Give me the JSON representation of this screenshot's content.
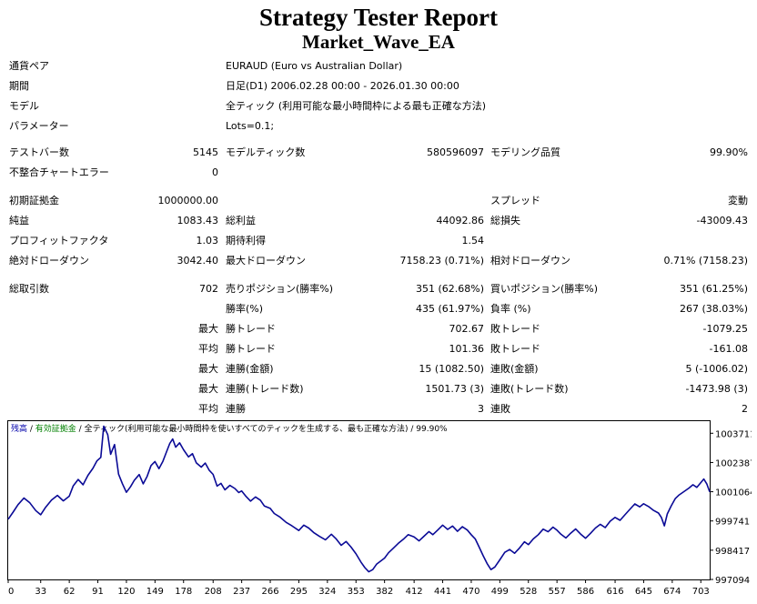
{
  "header": {
    "title": "Strategy Tester Report",
    "subtitle": "Market_Wave_EA"
  },
  "info": {
    "symbol_label": "通貨ペア",
    "symbol_value": "EURAUD (Euro vs Australian Dollar)",
    "period_label": "期間",
    "period_value": "日足(D1) 2006.02.28 00:00 - 2026.01.30 00:00",
    "model_label": "モデル",
    "model_value": "全ティック (利用可能な最小時間枠による最も正確な方法)",
    "params_label": "パラメーター",
    "params_value": "Lots=0.1;"
  },
  "stats": {
    "bars_label": "テストバー数",
    "bars_value": "5145",
    "ticks_label": "モデルティック数",
    "ticks_value": "580596097",
    "quality_label": "モデリング品質",
    "quality_value": "99.90%",
    "mismatch_label": "不整合チャートエラー",
    "mismatch_value": "0",
    "deposit_label": "初期証拠金",
    "deposit_value": "1000000.00",
    "spread_label": "スプレッド",
    "spread_value": "変動",
    "net_label": "純益",
    "net_value": "1083.43",
    "gross_profit_label": "総利益",
    "gross_profit_value": "44092.86",
    "gross_loss_label": "総損失",
    "gross_loss_value": "-43009.43",
    "pf_label": "プロフィットファクタ",
    "pf_value": "1.03",
    "expected_label": "期待利得",
    "expected_value": "1.54",
    "abs_dd_label": "絶対ドローダウン",
    "abs_dd_value": "3042.40",
    "max_dd_label": "最大ドローダウン",
    "max_dd_value": "7158.23 (0.71%)",
    "rel_dd_label": "相対ドローダウン",
    "rel_dd_value": "0.71% (7158.23)",
    "trades_label": "総取引数",
    "trades_value": "702",
    "short_label": "売りポジション(勝率%)",
    "short_value": "351 (62.68%)",
    "long_label": "買いポジション(勝率%)",
    "long_value": "351 (61.25%)",
    "win_label": "勝率(%)",
    "win_value": "435 (61.97%)",
    "loss_label": "負率 (%)",
    "loss_value": "267 (38.03%)",
    "max_word": "最大",
    "avg_word": "平均",
    "max_win_label": "勝トレード",
    "max_win_value": "702.67",
    "max_loss_label": "敗トレード",
    "max_loss_value": "-1079.25",
    "avg_win_label": "勝トレード",
    "avg_win_value": "101.36",
    "avg_loss_label": "敗トレード",
    "avg_loss_value": "-161.08",
    "cons_win_money_label": "連勝(金額)",
    "cons_win_money_value": "15 (1082.50)",
    "cons_loss_money_label": "連敗(金額)",
    "cons_loss_money_value": "5 (-1006.02)",
    "cons_win_count_label": "連勝(トレード数)",
    "cons_win_count_value": "1501.73 (3)",
    "cons_loss_count_label": "連敗(トレード数)",
    "cons_loss_count_value": "-1473.98 (3)",
    "avg_cons_win_label": "連勝",
    "avg_cons_win_value": "3",
    "avg_cons_loss_label": "連敗",
    "avg_cons_loss_value": "2"
  },
  "chart_data": {
    "type": "line",
    "legend": {
      "balance": "残高",
      "sep1": " / ",
      "equity": "有効証拠金",
      "sep2": " / ",
      "model": "全ティック(利用可能な最小時間枠を使いすべてのティックを生成する、最も正確な方法)",
      "sep3": " / ",
      "quality": "99.90%"
    },
    "x_ticks": [
      "0",
      "33",
      "62",
      "91",
      "120",
      "149",
      "178",
      "208",
      "237",
      "266",
      "295",
      "324",
      "353",
      "382",
      "412",
      "441",
      "470",
      "499",
      "528",
      "557",
      "586",
      "616",
      "645",
      "674",
      "703"
    ],
    "x_tick_values": [
      0,
      33,
      62,
      91,
      120,
      149,
      178,
      208,
      237,
      266,
      295,
      324,
      353,
      382,
      412,
      441,
      470,
      499,
      528,
      557,
      586,
      616,
      645,
      674,
      703
    ],
    "y_ticks": [
      "1003711",
      "1002387",
      "1001064",
      "999741",
      "998417",
      "997094"
    ],
    "y_tick_values": [
      1003711,
      1002387,
      1001064,
      999741,
      998417,
      997094
    ],
    "xlim": [
      0,
      712
    ],
    "ylim": [
      997094,
      1004258
    ],
    "line_color": "#0a0a96",
    "series": [
      {
        "values": [
          [
            0,
            999820
          ],
          [
            5,
            1000140
          ],
          [
            10,
            1000480
          ],
          [
            16,
            1000780
          ],
          [
            22,
            1000560
          ],
          [
            28,
            1000210
          ],
          [
            33,
            1000020
          ],
          [
            38,
            1000360
          ],
          [
            44,
            1000690
          ],
          [
            50,
            1000900
          ],
          [
            56,
            1000650
          ],
          [
            62,
            1000860
          ],
          [
            66,
            1001330
          ],
          [
            71,
            1001620
          ],
          [
            76,
            1001380
          ],
          [
            81,
            1001810
          ],
          [
            86,
            1002120
          ],
          [
            90,
            1002460
          ],
          [
            94,
            1002620
          ],
          [
            97,
            1004030
          ],
          [
            101,
            1003650
          ],
          [
            104,
            1002760
          ],
          [
            108,
            1003200
          ],
          [
            112,
            1001860
          ],
          [
            116,
            1001420
          ],
          [
            120,
            1001040
          ],
          [
            124,
            1001280
          ],
          [
            128,
            1001580
          ],
          [
            133,
            1001840
          ],
          [
            137,
            1001420
          ],
          [
            141,
            1001760
          ],
          [
            145,
            1002250
          ],
          [
            149,
            1002430
          ],
          [
            153,
            1002110
          ],
          [
            157,
            1002440
          ],
          [
            161,
            1002900
          ],
          [
            164,
            1003250
          ],
          [
            167,
            1003450
          ],
          [
            170,
            1003080
          ],
          [
            174,
            1003280
          ],
          [
            178,
            1002960
          ],
          [
            183,
            1002640
          ],
          [
            187,
            1002790
          ],
          [
            191,
            1002370
          ],
          [
            196,
            1002180
          ],
          [
            200,
            1002360
          ],
          [
            204,
            1002040
          ],
          [
            208,
            1001850
          ],
          [
            212,
            1001320
          ],
          [
            216,
            1001440
          ],
          [
            220,
            1001150
          ],
          [
            225,
            1001350
          ],
          [
            230,
            1001210
          ],
          [
            234,
            1001030
          ],
          [
            237,
            1001100
          ],
          [
            241,
            1000870
          ],
          [
            246,
            1000640
          ],
          [
            251,
            1000830
          ],
          [
            256,
            1000680
          ],
          [
            260,
            1000420
          ],
          [
            266,
            1000310
          ],
          [
            270,
            1000080
          ],
          [
            276,
            999910
          ],
          [
            282,
            999680
          ],
          [
            288,
            999520
          ],
          [
            295,
            999310
          ],
          [
            300,
            999550
          ],
          [
            305,
            999420
          ],
          [
            310,
            999220
          ],
          [
            316,
            999040
          ],
          [
            322,
            998890
          ],
          [
            328,
            999140
          ],
          [
            333,
            998920
          ],
          [
            338,
            998640
          ],
          [
            343,
            998810
          ],
          [
            348,
            998560
          ],
          [
            353,
            998250
          ],
          [
            358,
            997880
          ],
          [
            362,
            997630
          ],
          [
            366,
            997440
          ],
          [
            370,
            997540
          ],
          [
            374,
            997790
          ],
          [
            378,
            997920
          ],
          [
            382,
            998060
          ],
          [
            386,
            998300
          ],
          [
            391,
            998510
          ],
          [
            396,
            998730
          ],
          [
            401,
            998910
          ],
          [
            406,
            999120
          ],
          [
            412,
            999020
          ],
          [
            417,
            998840
          ],
          [
            422,
            999050
          ],
          [
            427,
            999260
          ],
          [
            431,
            999120
          ],
          [
            436,
            999330
          ],
          [
            441,
            999550
          ],
          [
            446,
            999360
          ],
          [
            451,
            999510
          ],
          [
            456,
            999270
          ],
          [
            461,
            999480
          ],
          [
            466,
            999330
          ],
          [
            470,
            999120
          ],
          [
            474,
            998930
          ],
          [
            478,
            998560
          ],
          [
            482,
            998180
          ],
          [
            486,
            997820
          ],
          [
            490,
            997540
          ],
          [
            494,
            997660
          ],
          [
            499,
            997980
          ],
          [
            504,
            998320
          ],
          [
            509,
            998450
          ],
          [
            514,
            998280
          ],
          [
            519,
            998520
          ],
          [
            524,
            998800
          ],
          [
            528,
            998670
          ],
          [
            533,
            998930
          ],
          [
            538,
            999120
          ],
          [
            543,
            999370
          ],
          [
            548,
            999250
          ],
          [
            553,
            999460
          ],
          [
            557,
            999320
          ],
          [
            561,
            999140
          ],
          [
            566,
            998970
          ],
          [
            571,
            999190
          ],
          [
            576,
            999380
          ],
          [
            581,
            999150
          ],
          [
            586,
            998960
          ],
          [
            591,
            999180
          ],
          [
            596,
            999420
          ],
          [
            601,
            999590
          ],
          [
            606,
            999440
          ],
          [
            611,
            999730
          ],
          [
            616,
            999900
          ],
          [
            621,
            999770
          ],
          [
            626,
            1000020
          ],
          [
            631,
            1000270
          ],
          [
            636,
            1000510
          ],
          [
            641,
            1000380
          ],
          [
            645,
            1000520
          ],
          [
            650,
            1000390
          ],
          [
            655,
            1000220
          ],
          [
            660,
            1000100
          ],
          [
            663,
            999900
          ],
          [
            666,
            999520
          ],
          [
            669,
            1000060
          ],
          [
            673,
            1000430
          ],
          [
            677,
            1000750
          ],
          [
            681,
            1000920
          ],
          [
            686,
            1001070
          ],
          [
            691,
            1001230
          ],
          [
            695,
            1001380
          ],
          [
            699,
            1001260
          ],
          [
            703,
            1001480
          ],
          [
            706,
            1001640
          ],
          [
            709,
            1001420
          ],
          [
            712,
            1001060
          ]
        ]
      }
    ]
  }
}
